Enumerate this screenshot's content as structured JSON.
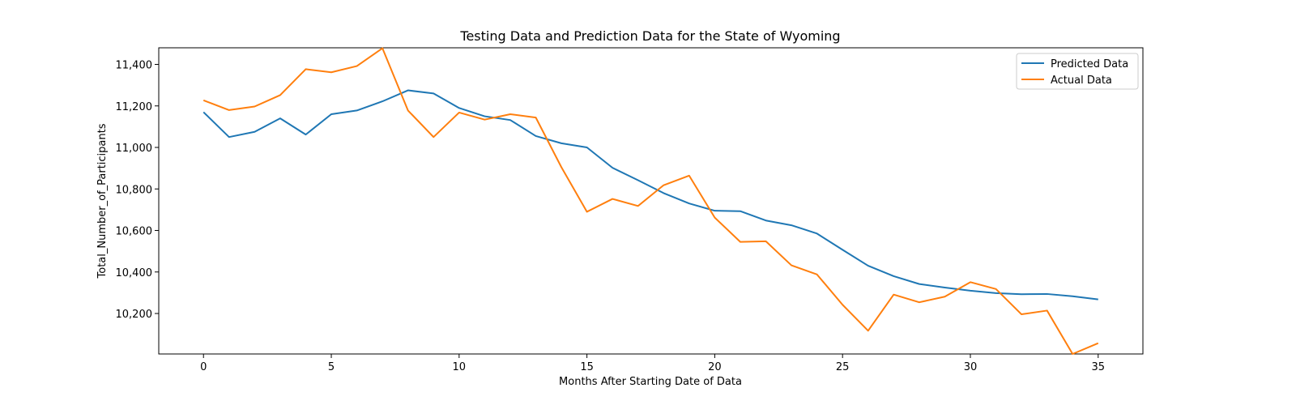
{
  "chart_data": {
    "type": "line",
    "title": "Testing Data and Prediction Data for the State of Wyoming",
    "xlabel": "Months After Starting Date of Data",
    "ylabel": "Total_Number_of_Participants",
    "xlim": [
      -1.75,
      36.75
    ],
    "ylim": [
      10005,
      11480
    ],
    "x_ticks": [
      0,
      5,
      10,
      15,
      20,
      25,
      30,
      35
    ],
    "x_tick_labels": [
      "0",
      "5",
      "10",
      "15",
      "20",
      "25",
      "30",
      "35"
    ],
    "y_ticks": [
      10200,
      10400,
      10600,
      10800,
      11000,
      11200,
      11400
    ],
    "y_tick_labels": [
      "10,200",
      "10,400",
      "10,600",
      "10,800",
      "11,000",
      "11,200",
      "11,400"
    ],
    "grid": false,
    "legend_position": "top-right",
    "x": [
      0,
      1,
      2,
      3,
      4,
      5,
      6,
      7,
      8,
      9,
      10,
      11,
      12,
      13,
      14,
      15,
      16,
      17,
      18,
      19,
      20,
      21,
      22,
      23,
      24,
      25,
      26,
      27,
      28,
      29,
      30,
      31,
      32,
      33,
      34,
      35
    ],
    "series": [
      {
        "name": "Predicted Data",
        "color": "#1f77b4",
        "values": [
          11170,
          11050,
          11075,
          11140,
          11062,
          11160,
          11178,
          11222,
          11275,
          11260,
          11190,
          11150,
          11132,
          11055,
          11020,
          11000,
          10902,
          10842,
          10780,
          10730,
          10695,
          10693,
          10648,
          10625,
          10585,
          10507,
          10430,
          10380,
          10342,
          10325,
          10310,
          10298,
          10293,
          10294,
          10283,
          10268
        ]
      },
      {
        "name": "Actual Data",
        "color": "#ff7f0e",
        "values": [
          11227,
          11180,
          11197,
          11252,
          11377,
          11362,
          11392,
          11478,
          11178,
          11050,
          11168,
          11134,
          11160,
          11144,
          10905,
          10690,
          10752,
          10718,
          10818,
          10864,
          10662,
          10545,
          10548,
          10432,
          10388,
          10242,
          10117,
          10291,
          10254,
          10281,
          10351,
          10318,
          10196,
          10214,
          10005,
          10057
        ]
      }
    ]
  }
}
